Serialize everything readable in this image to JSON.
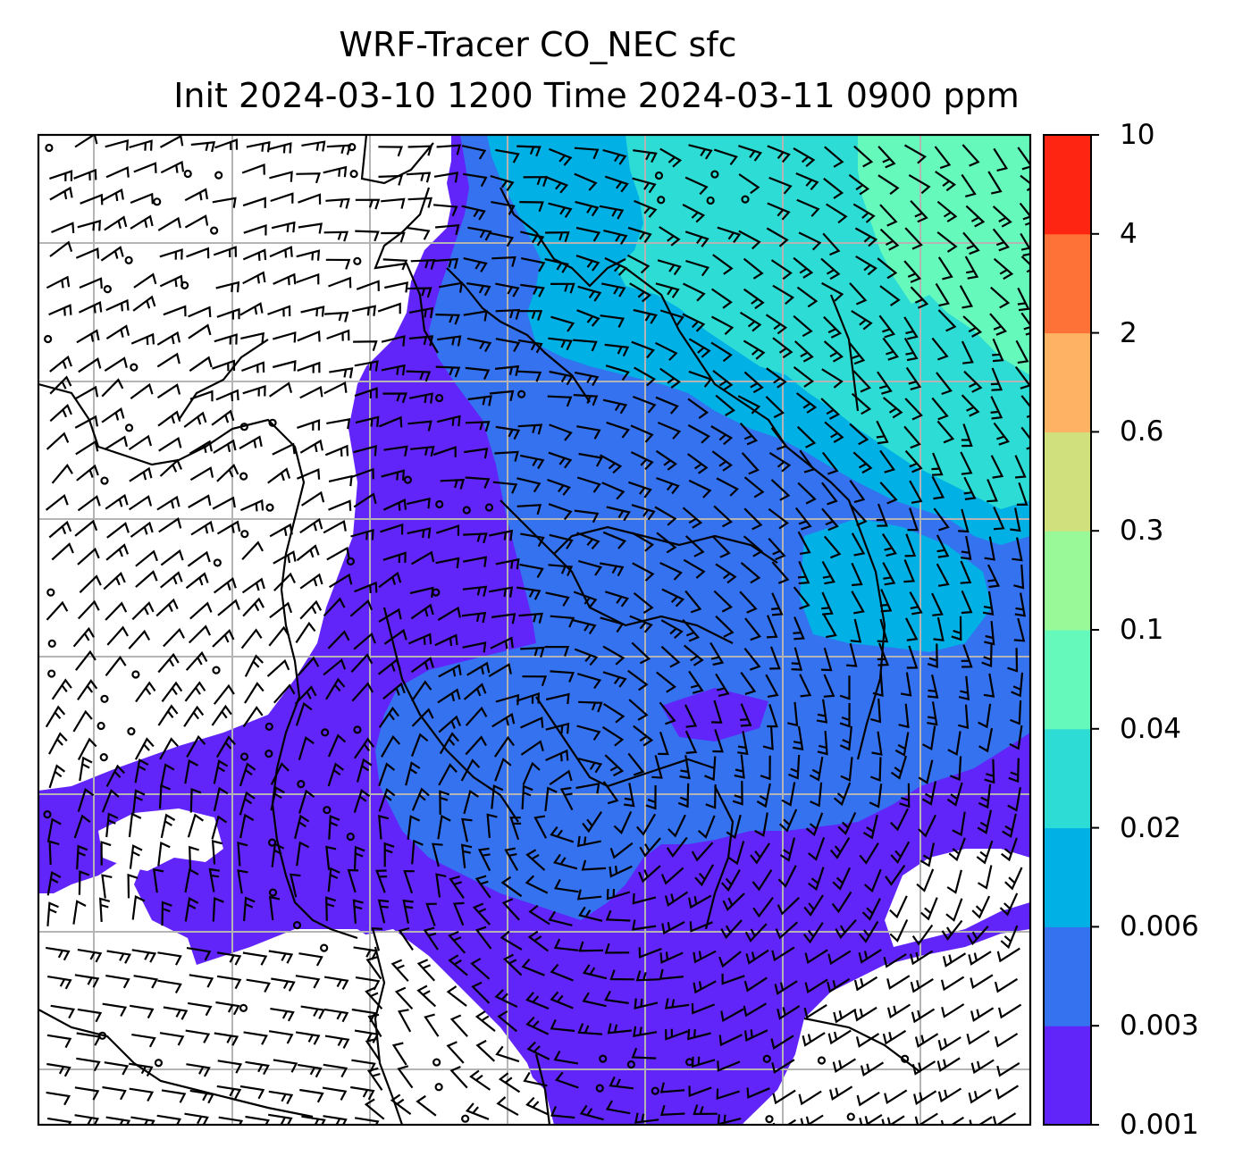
{
  "title": {
    "line1": "WRF-Tracer CO_NEC sfc",
    "line2": "Init 2024-03-10 1200 Time 2024-03-11 0900 ppm"
  },
  "colorbar": {
    "levels": [
      "0.001",
      "0.003",
      "0.006",
      "0.02",
      "0.04",
      "0.1",
      "0.3",
      "0.6",
      "2",
      "4",
      "10"
    ],
    "colors": [
      "#6125fa",
      "#3472f0",
      "#01b0e5",
      "#2ddcd4",
      "#66f9bc",
      "#99f898",
      "#d0e07c",
      "#fdb264",
      "#ff7237",
      "#fe2513"
    ]
  },
  "map": {
    "background": "#ffffff",
    "grid": true,
    "field_colors": {
      "lowest": "#6125fa",
      "low": "#3472f0",
      "mid": "#01b0e5",
      "high": "#2ddcd4",
      "highest": "#66f9bc"
    },
    "overlays": [
      "wind-barbs",
      "coastlines",
      "state-borders",
      "lat-lon-grid"
    ]
  }
}
